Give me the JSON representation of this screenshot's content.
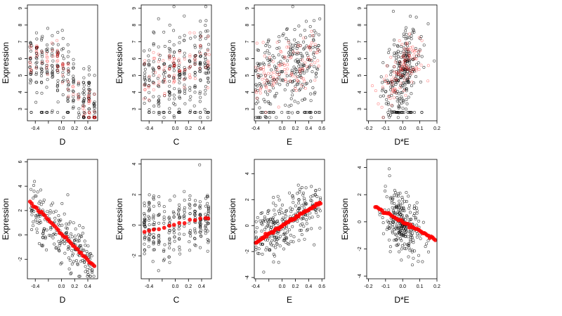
{
  "colors": {
    "observed": "#000000",
    "fitted": "#ff0000",
    "background": "#ffffff"
  },
  "chart_data": [
    {
      "id": "top-D",
      "type": "scatter",
      "xlabel": "D",
      "ylabel": "Expression",
      "xlim": [
        -0.52,
        0.55
      ],
      "ylim": [
        2.3,
        9.2
      ],
      "xticks": [
        -0.4,
        -0.2,
        0.0,
        0.2,
        0.4
      ],
      "xtick_labels": [
        "-0.4",
        "",
        "0.0",
        "0.2",
        "0.4"
      ],
      "yticks": [
        3,
        4,
        5,
        6,
        7,
        8,
        9
      ],
      "ytick_labels": [
        "3",
        "4",
        "5",
        "6",
        "7",
        "8",
        "9"
      ],
      "series": [
        {
          "role": "observed",
          "trend": [
            [
              -0.48,
              5.6
            ],
            [
              -0.2,
              5.9
            ],
            [
              0.05,
              5.4
            ],
            [
              0.25,
              3.6
            ],
            [
              0.5,
              3.0
            ]
          ],
          "spread": 1.1,
          "n": 260,
          "xcols": [
            -0.47,
            -0.38,
            -0.3,
            -0.22,
            -0.14,
            -0.06,
            0.02,
            0.1,
            0.18,
            0.26,
            0.34,
            0.42,
            0.5
          ],
          "floor": 2.8
        },
        {
          "role": "fitted",
          "trend": [
            [
              -0.48,
              5.7
            ],
            [
              -0.2,
              6.2
            ],
            [
              0.05,
              5.6
            ],
            [
              0.25,
              3.5
            ],
            [
              0.5,
              2.9
            ]
          ],
          "spread": 0.6,
          "n": 90,
          "xcols": [
            -0.47,
            -0.38,
            -0.3,
            -0.22,
            -0.14,
            -0.06,
            0.02,
            0.1,
            0.18,
            0.26,
            0.34,
            0.42,
            0.5
          ]
        }
      ]
    },
    {
      "id": "top-C",
      "type": "scatter",
      "xlabel": "C",
      "ylabel": "Expression",
      "xlim": [
        -0.52,
        0.55
      ],
      "ylim": [
        2.3,
        9.2
      ],
      "xticks": [
        -0.4,
        -0.2,
        0.0,
        0.2,
        0.4
      ],
      "xtick_labels": [
        "-0.4",
        "",
        "0.0",
        "0.2",
        "0.4"
      ],
      "yticks": [
        3,
        4,
        5,
        6,
        7,
        8,
        9
      ],
      "ytick_labels": [
        "3",
        "4",
        "5",
        "6",
        "7",
        "8",
        "9"
      ],
      "series": [
        {
          "role": "observed",
          "trend": [
            [
              -0.48,
              4.8
            ],
            [
              0.0,
              5.2
            ],
            [
              0.5,
              5.8
            ]
          ],
          "spread": 1.2,
          "n": 280,
          "xcols": [
            -0.47,
            -0.4,
            -0.33,
            -0.25,
            -0.17,
            -0.09,
            -0.02,
            0.06,
            0.14,
            0.22,
            0.3,
            0.38,
            0.46,
            0.5
          ],
          "floor": 2.8
        },
        {
          "role": "fitted",
          "trend": [
            [
              -0.48,
              4.9
            ],
            [
              0.0,
              5.3
            ],
            [
              0.5,
              6.0
            ]
          ],
          "spread": 0.7,
          "n": 90,
          "xcols": [
            -0.47,
            -0.4,
            -0.33,
            -0.25,
            -0.17,
            -0.09,
            -0.02,
            0.06,
            0.14,
            0.22,
            0.3,
            0.38,
            0.46,
            0.5
          ]
        }
      ]
    },
    {
      "id": "top-E",
      "type": "scatter",
      "xlabel": "E",
      "ylabel": "Expression",
      "xlim": [
        -0.42,
        0.64
      ],
      "ylim": [
        2.3,
        9.2
      ],
      "xticks": [
        -0.4,
        -0.2,
        0.0,
        0.2,
        0.4,
        0.6
      ],
      "xtick_labels": [
        "-0.4",
        "",
        "0.0",
        "0.2",
        "0.4",
        "0.6"
      ],
      "yticks": [
        3,
        4,
        5,
        6,
        7,
        8,
        9
      ],
      "ytick_labels": [
        "3",
        "4",
        "5",
        "6",
        "7",
        "8",
        "9"
      ],
      "series": [
        {
          "role": "observed",
          "trend": [
            [
              -0.4,
              4.2
            ],
            [
              0.0,
              5.2
            ],
            [
              0.4,
              6.0
            ],
            [
              0.58,
              6.6
            ]
          ],
          "spread": 1.3,
          "n": 280,
          "floor": 2.8
        },
        {
          "role": "fitted",
          "trend": [
            [
              -0.4,
              4.5
            ],
            [
              0.0,
              5.3
            ],
            [
              0.4,
              6.1
            ],
            [
              0.58,
              6.6
            ]
          ],
          "spread": 0.9,
          "n": 110
        }
      ]
    },
    {
      "id": "top-DE",
      "type": "scatter",
      "xlabel": "D*E",
      "ylabel": "Expression",
      "xlim": [
        -0.21,
        0.2
      ],
      "ylim": [
        2.3,
        9.2
      ],
      "xticks": [
        -0.2,
        -0.1,
        0.0,
        0.1,
        0.2
      ],
      "xtick_labels": [
        "-0.2",
        "-0.1",
        "0.0",
        "0.1",
        "0.2"
      ],
      "yticks": [
        3,
        4,
        5,
        6,
        7,
        8,
        9
      ],
      "ytick_labels": [
        "3",
        "4",
        "5",
        "6",
        "7",
        "8",
        "9"
      ],
      "series": [
        {
          "role": "observed",
          "trend": [
            [
              -0.2,
              3.2
            ],
            [
              -0.05,
              4.6
            ],
            [
              0.0,
              5.3
            ],
            [
              0.05,
              6.1
            ],
            [
              0.19,
              5.4
            ]
          ],
          "spread": 1.2,
          "n": 270,
          "center": 0.0,
          "cspread": 0.055,
          "floor": 2.8
        },
        {
          "role": "fitted",
          "trend": [
            [
              -0.2,
              3.0
            ],
            [
              -0.05,
              4.6
            ],
            [
              0.0,
              5.4
            ],
            [
              0.05,
              6.2
            ],
            [
              0.19,
              5.4
            ]
          ],
          "spread": 0.7,
          "n": 110,
          "center": 0.0,
          "cspread": 0.06
        }
      ]
    },
    {
      "id": "bottom-D",
      "type": "scatter",
      "xlabel": "D",
      "ylabel": "Expression",
      "xlim": [
        -0.52,
        0.55
      ],
      "ylim": [
        -3.6,
        6.2
      ],
      "xticks": [
        -0.4,
        -0.2,
        0.0,
        0.2,
        0.4
      ],
      "xtick_labels": [
        "-0.4",
        "",
        "0.0",
        "0.2",
        "0.4"
      ],
      "yticks": [
        -2,
        0,
        2,
        4,
        6
      ],
      "ytick_labels": [
        "-2",
        "0",
        "2",
        "4",
        "6"
      ],
      "series": [
        {
          "role": "observed",
          "trend": [
            [
              -0.48,
              2.2
            ],
            [
              0.5,
              -2.6
            ]
          ],
          "spread": 1.0,
          "n": 230
        },
        {
          "role": "fitted",
          "line": [
            [
              -0.48,
              2.7
            ],
            [
              0.5,
              -2.6
            ]
          ],
          "n": 40
        }
      ]
    },
    {
      "id": "bottom-C",
      "type": "scatter",
      "xlabel": "C",
      "ylabel": "Expression",
      "xlim": [
        -0.52,
        0.55
      ],
      "ylim": [
        -3.5,
        4.3
      ],
      "xticks": [
        -0.4,
        -0.2,
        0.0,
        0.2,
        0.4
      ],
      "xtick_labels": [
        "-0.4",
        "",
        "0.0",
        "0.2",
        "0.4"
      ],
      "yticks": [
        -2,
        0,
        2,
        4
      ],
      "ytick_labels": [
        "-2",
        "0",
        "2",
        "4"
      ],
      "series": [
        {
          "role": "observed",
          "trend": [
            [
              -0.48,
              -0.4
            ],
            [
              0.5,
              0.5
            ]
          ],
          "spread": 1.1,
          "n": 250,
          "xcols": [
            -0.47,
            -0.4,
            -0.33,
            -0.25,
            -0.17,
            -0.09,
            -0.02,
            0.06,
            0.14,
            0.22,
            0.3,
            0.38,
            0.46,
            0.5
          ]
        },
        {
          "role": "fitted",
          "line": [
            [
              -0.48,
              -0.45
            ],
            [
              0.5,
              0.5
            ]
          ],
          "n": 14,
          "xcols": [
            -0.47,
            -0.4,
            -0.33,
            -0.25,
            -0.17,
            -0.09,
            -0.02,
            0.06,
            0.14,
            0.22,
            0.3,
            0.38,
            0.46,
            0.5
          ]
        }
      ]
    },
    {
      "id": "bottom-E",
      "type": "scatter",
      "xlabel": "E",
      "ylabel": "Expression",
      "xlim": [
        -0.42,
        0.64
      ],
      "ylim": [
        -4.1,
        5.1
      ],
      "xticks": [
        -0.4,
        -0.2,
        0.0,
        0.2,
        0.4,
        0.6
      ],
      "xtick_labels": [
        "-0.4",
        "",
        "0.0",
        "0.2",
        "0.4",
        "0.6"
      ],
      "yticks": [
        -4,
        -2,
        0,
        2,
        4
      ],
      "ytick_labels": [
        "-4",
        "-2",
        "0",
        "2",
        "4"
      ],
      "series": [
        {
          "role": "observed",
          "trend": [
            [
              -0.4,
              -1.2
            ],
            [
              0.58,
              1.9
            ]
          ],
          "spread": 1.1,
          "n": 260
        },
        {
          "role": "fitted",
          "line": [
            [
              -0.4,
              -1.3
            ],
            [
              0.58,
              1.8
            ]
          ],
          "n": 60
        }
      ]
    },
    {
      "id": "bottom-DE",
      "type": "scatter",
      "xlabel": "D*E",
      "ylabel": "Expression",
      "xlim": [
        -0.21,
        0.2
      ],
      "ylim": [
        -4.2,
        4.6
      ],
      "xticks": [
        -0.2,
        -0.1,
        0.0,
        0.1,
        0.2
      ],
      "xtick_labels": [
        "-0.2",
        "-0.1",
        "0.0",
        "0.1",
        "0.2"
      ],
      "yticks": [
        -4,
        -2,
        0,
        2,
        4
      ],
      "ytick_labels": [
        "-4",
        "-2",
        "0",
        "2",
        "4"
      ],
      "series": [
        {
          "role": "observed",
          "trend": [
            [
              -0.2,
              1.2
            ],
            [
              0.0,
              -0.1
            ],
            [
              0.19,
              -1.3
            ]
          ],
          "spread": 1.1,
          "n": 250,
          "center": 0.0,
          "cspread": 0.05
        },
        {
          "role": "fitted",
          "line": [
            [
              -0.16,
              1.1
            ],
            [
              0.19,
              -1.3
            ]
          ],
          "n": 45,
          "center": 0.0,
          "cspread": 0.05
        }
      ]
    }
  ]
}
